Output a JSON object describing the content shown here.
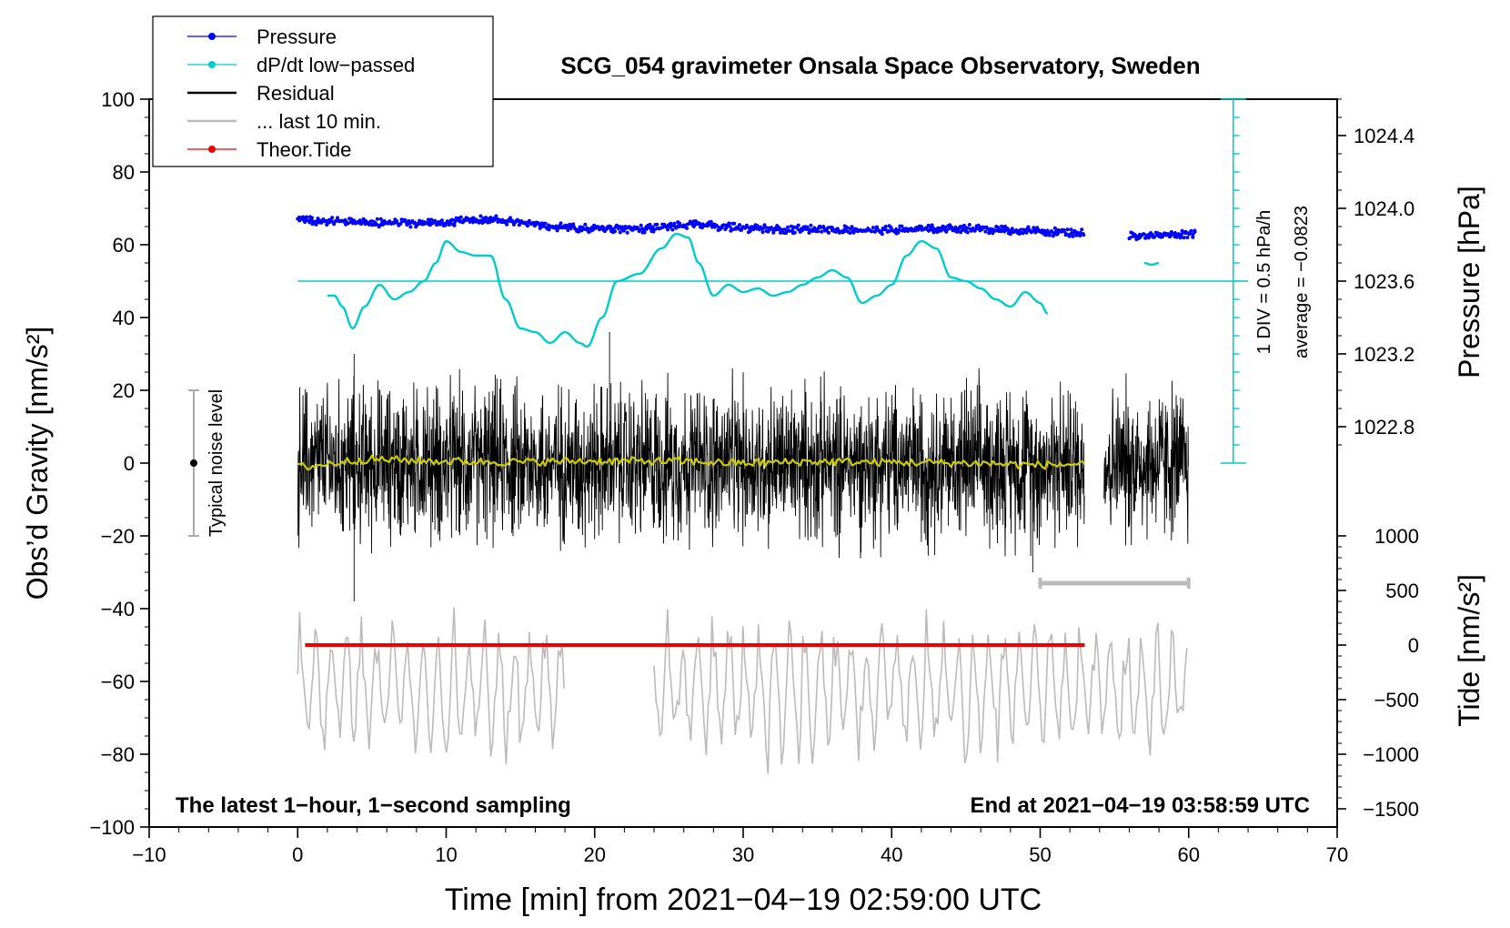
{
  "chart_data": {
    "type": "line",
    "title": "SCG_054 gravimeter Onsala Space Observatory, Sweden",
    "xlabel": "Time [min] from 2021−04−19 02:59:00 UTC",
    "ylabel_left": "Obs’d Gravity [nm/s²]",
    "ylabel_right_top": "Pressure [hPa]",
    "ylabel_right_bottom": "Tide [nm/s²]",
    "xlim": [
      -10,
      70
    ],
    "ylim": [
      -100,
      100
    ],
    "x_ticks": [
      -10,
      0,
      10,
      20,
      30,
      40,
      50,
      60,
      70
    ],
    "x_tick_labels": [
      "−10",
      "0",
      "10",
      "20",
      "30",
      "40",
      "50",
      "60",
      "70"
    ],
    "y_ticks": [
      100,
      80,
      60,
      40,
      20,
      0,
      -20,
      -40,
      -60,
      -80,
      -100
    ],
    "y_tick_labels": [
      "100",
      "80",
      "60",
      "40",
      "20",
      "0",
      "−20",
      "−40",
      "−60",
      "−80",
      "−100"
    ],
    "pressure_axis": {
      "ticks": [
        1024.4,
        1024.0,
        1023.6,
        1023.2,
        1022.8
      ],
      "labels": [
        "1024.4",
        "1024.0",
        "1023.6",
        "1023.2",
        "1022.8"
      ],
      "map": {
        "value_at_gravity_50": 1023.6,
        "hPa_per_nm_s2": 0.02
      }
    },
    "tide_axis": {
      "ticks": [
        1000,
        500,
        0,
        -500,
        -1000,
        -1500
      ],
      "labels": [
        "1000",
        "500",
        "0",
        "−500",
        "−1000",
        "−1500"
      ],
      "map": {
        "value_at_gravity_minus50": 0,
        "units_per_nm_s2": 33.333
      }
    },
    "legend": {
      "position": "top-left",
      "entries": [
        {
          "label": "Pressure",
          "color": "#0000ff",
          "marker": "dot"
        },
        {
          "label": "dP/dt low−passed",
          "color": "#00cccc",
          "marker": "dot"
        },
        {
          "label": "Residual",
          "color": "#000000",
          "marker": "line"
        },
        {
          "label": "... last 10 min.",
          "color": "#bbbbbb",
          "marker": "line"
        },
        {
          "label": "Theor.Tide",
          "color": "#ee0000",
          "marker": "dot"
        }
      ]
    },
    "annotations": {
      "bottom_left": "The latest 1−hour, 1−second sampling",
      "bottom_right": "End at 2021−04−19 03:58:59 UTC",
      "div_label": "1 DIV = 0.5 hPa/h",
      "average_label": "average = −0.0823",
      "noise_label": "Typical noise level"
    },
    "noise_bar": {
      "x": -7,
      "center": 0,
      "low": -20,
      "high": 20
    },
    "last10_bar": {
      "x_start": 50,
      "x_end": 60,
      "y": -33
    },
    "dpdt_reference": {
      "y": 50,
      "x_start": 0,
      "x_end": 64
    },
    "div_scale": {
      "x": 63,
      "y_start": 0,
      "y_end": 100,
      "ticks_every": 5
    },
    "series": [
      {
        "name": "Pressure",
        "color": "#0000ff",
        "x": [
          0,
          1,
          3,
          5,
          7,
          9,
          11,
          13,
          15,
          17,
          19,
          21,
          23,
          25,
          27,
          30,
          33,
          36,
          39,
          42,
          45,
          48,
          51,
          53,
          54.3,
          56,
          58,
          60.5
        ],
        "values": [
          67,
          66.5,
          66.3,
          66,
          66,
          66,
          66.5,
          67,
          66,
          65,
          64.5,
          64.5,
          64.3,
          65,
          65.5,
          64.5,
          64.3,
          64.3,
          64,
          64.3,
          64.5,
          64,
          63.5,
          63.2,
          null,
          62.5,
          62.5,
          63.2
        ]
      },
      {
        "name": "dP/dt low−passed",
        "color": "#00cccc",
        "x": [
          2,
          2.5,
          3,
          3.7,
          4.5,
          5.5,
          6.5,
          7.5,
          8.5,
          9.3,
          10,
          11,
          12,
          13,
          14,
          15,
          16,
          17,
          18,
          19,
          19.5,
          20.5,
          21.5,
          23,
          24.5,
          25.5,
          26.3,
          27,
          28,
          29,
          30,
          31,
          32,
          33,
          34,
          35,
          36,
          37,
          38,
          39,
          40,
          41,
          42,
          43,
          44,
          45,
          46,
          47,
          48,
          49,
          50,
          50.5,
          56.5,
          57,
          57.5,
          58
        ],
        "values": [
          46,
          46,
          43,
          37,
          43,
          49,
          45,
          47,
          50,
          55,
          61,
          58,
          57,
          57,
          45,
          37,
          36,
          33,
          36,
          33,
          32,
          40,
          50,
          52,
          59,
          63,
          62,
          55,
          46,
          49,
          47,
          48,
          46,
          47,
          49,
          51,
          53,
          51,
          44,
          46,
          49,
          57,
          61,
          59,
          51,
          50,
          48,
          45,
          43,
          47,
          44,
          41,
          null,
          55,
          54.5,
          55
        ]
      },
      {
        "name": "Residual",
        "color": "#000000",
        "x_range": [
          0,
          60
        ],
        "gap": [
          53,
          54.3
        ],
        "amplitude": 28,
        "min": -38,
        "max": 36,
        "peaks": [
          {
            "x": 3.8,
            "value": 30
          },
          {
            "x": 3.8,
            "value": -38
          },
          {
            "x": 21,
            "value": 36
          },
          {
            "x": 49.5,
            "value": -30
          }
        ]
      },
      {
        "name": "Residual mean (smoothed)",
        "color": "#cccc00",
        "x": [
          0,
          5,
          10,
          15,
          20,
          25,
          30,
          35,
          40,
          45,
          50,
          53,
          54.3,
          60
        ],
        "values": [
          -1,
          1,
          0.5,
          0.3,
          0.6,
          0.5,
          0,
          0.4,
          0.2,
          0,
          -0.5,
          -0.3,
          null,
          -0.2
        ]
      },
      {
        "name": "... last 10 min.",
        "color": "#bbbbbb",
        "segments": [
          [
            0,
            18
          ],
          [
            24,
            60
          ]
        ],
        "center": -62,
        "min": -88,
        "max": -38
      },
      {
        "name": "Theor.Tide",
        "color": "#ee0000",
        "x": [
          0.5,
          53,
          54.3,
          60.5
        ],
        "values": [
          -50,
          -50,
          null,
          -50
        ]
      }
    ]
  }
}
